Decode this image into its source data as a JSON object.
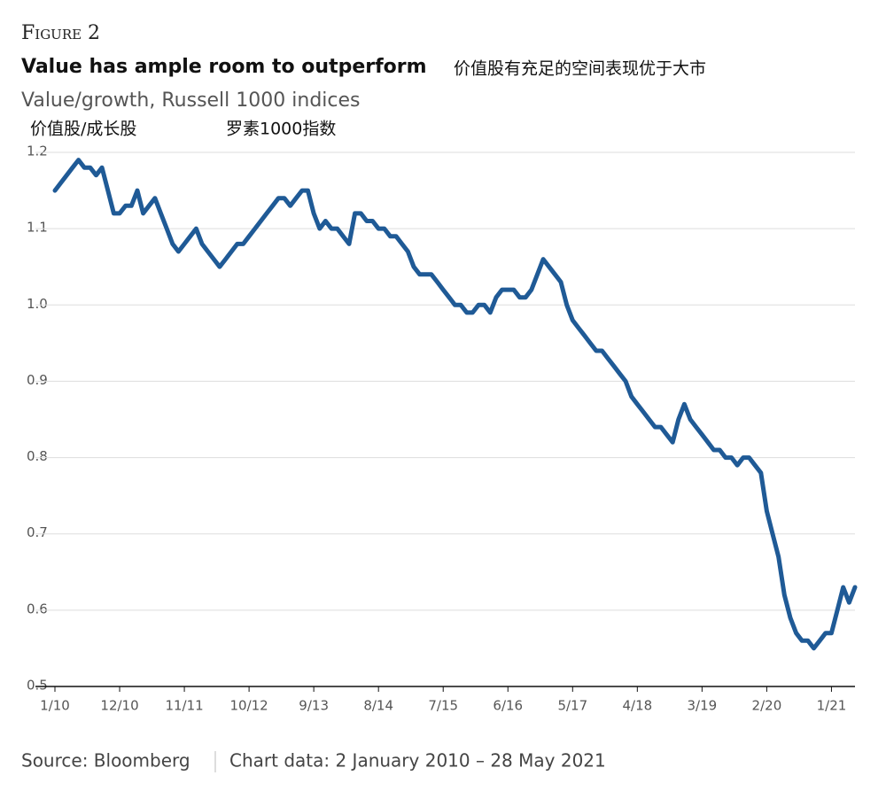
{
  "figure_label": "Figure 2",
  "title_cn": "价值股有充足的空间表现优于大市",
  "subtitle_cn_1": "价值股/成长股",
  "subtitle_cn_2": "罗素1000指数",
  "source": "Source: Bloomberg",
  "chart_note": "Chart data: 2 January 2010 – 28 May 2021",
  "chart_data": {
    "type": "line",
    "title": "Value has ample room to outperform",
    "subtitle": "Value/growth, Russell 1000 indices",
    "x": [
      "1/10",
      "2/10",
      "3/10",
      "4/10",
      "5/10",
      "6/10",
      "7/10",
      "8/10",
      "9/10",
      "10/10",
      "11/10",
      "12/10",
      "1/11",
      "2/11",
      "3/11",
      "4/11",
      "5/11",
      "6/11",
      "7/11",
      "8/11",
      "9/11",
      "10/11",
      "11/11",
      "12/11",
      "1/12",
      "2/12",
      "3/12",
      "4/12",
      "5/12",
      "6/12",
      "7/12",
      "8/12",
      "9/12",
      "10/12",
      "11/12",
      "12/12",
      "1/13",
      "2/13",
      "3/13",
      "4/13",
      "5/13",
      "6/13",
      "7/13",
      "8/13",
      "9/13",
      "10/13",
      "11/13",
      "12/13",
      "1/14",
      "2/14",
      "3/14",
      "4/14",
      "5/14",
      "6/14",
      "7/14",
      "8/14",
      "9/14",
      "10/14",
      "11/14",
      "12/14",
      "1/15",
      "2/15",
      "3/15",
      "4/15",
      "5/15",
      "6/15",
      "7/15",
      "8/15",
      "9/15",
      "10/15",
      "11/15",
      "12/15",
      "1/16",
      "2/16",
      "3/16",
      "4/16",
      "5/16",
      "6/16",
      "7/16",
      "8/16",
      "9/16",
      "10/16",
      "11/16",
      "12/16",
      "1/17",
      "2/17",
      "3/17",
      "4/17",
      "5/17",
      "6/17",
      "7/17",
      "8/17",
      "9/17",
      "10/17",
      "11/17",
      "12/17",
      "1/18",
      "2/18",
      "3/18",
      "4/18",
      "5/18",
      "6/18",
      "7/18",
      "8/18",
      "9/18",
      "10/18",
      "11/18",
      "12/18",
      "1/19",
      "2/19",
      "3/19",
      "4/19",
      "5/19",
      "6/19",
      "7/19",
      "8/19",
      "9/19",
      "10/19",
      "11/19",
      "12/19",
      "1/20",
      "2/20",
      "3/20",
      "4/20",
      "5/20",
      "6/20",
      "7/20",
      "8/20",
      "9/20",
      "10/20",
      "11/20",
      "12/20",
      "1/21",
      "2/21",
      "3/21",
      "4/21",
      "5/21"
    ],
    "series": [
      {
        "name": "Value/growth",
        "color": "#1f5a96",
        "values": [
          1.15,
          1.16,
          1.17,
          1.18,
          1.19,
          1.18,
          1.18,
          1.17,
          1.18,
          1.15,
          1.12,
          1.12,
          1.13,
          1.13,
          1.15,
          1.12,
          1.13,
          1.14,
          1.12,
          1.1,
          1.08,
          1.07,
          1.08,
          1.09,
          1.1,
          1.08,
          1.07,
          1.06,
          1.05,
          1.06,
          1.07,
          1.08,
          1.08,
          1.09,
          1.1,
          1.11,
          1.12,
          1.13,
          1.14,
          1.14,
          1.13,
          1.14,
          1.15,
          1.15,
          1.12,
          1.1,
          1.11,
          1.1,
          1.1,
          1.09,
          1.08,
          1.12,
          1.12,
          1.11,
          1.11,
          1.1,
          1.1,
          1.09,
          1.09,
          1.08,
          1.07,
          1.05,
          1.04,
          1.04,
          1.04,
          1.03,
          1.02,
          1.01,
          1.0,
          1.0,
          0.99,
          0.99,
          1.0,
          1.0,
          0.99,
          1.01,
          1.02,
          1.02,
          1.02,
          1.01,
          1.01,
          1.02,
          1.04,
          1.06,
          1.05,
          1.04,
          1.03,
          1.0,
          0.98,
          0.97,
          0.96,
          0.95,
          0.94,
          0.94,
          0.93,
          0.92,
          0.91,
          0.9,
          0.88,
          0.87,
          0.86,
          0.85,
          0.84,
          0.84,
          0.83,
          0.82,
          0.85,
          0.87,
          0.85,
          0.84,
          0.83,
          0.82,
          0.81,
          0.81,
          0.8,
          0.8,
          0.79,
          0.8,
          0.8,
          0.79,
          0.78,
          0.73,
          0.7,
          0.67,
          0.62,
          0.59,
          0.57,
          0.56,
          0.56,
          0.55,
          0.56,
          0.57,
          0.57,
          0.6,
          0.63,
          0.61,
          0.63
        ]
      }
    ],
    "xticks": [
      "1/10",
      "12/10",
      "11/11",
      "10/12",
      "9/13",
      "8/14",
      "7/15",
      "6/16",
      "5/17",
      "4/18",
      "3/19",
      "2/20",
      "1/21"
    ],
    "ylim": [
      0.5,
      1.2
    ],
    "yticks": [
      0.5,
      0.6,
      0.7,
      0.8,
      0.9,
      {
        "value": 1,
        "label": "1.0"
      },
      1.1,
      1.2
    ],
    "grid": true
  }
}
